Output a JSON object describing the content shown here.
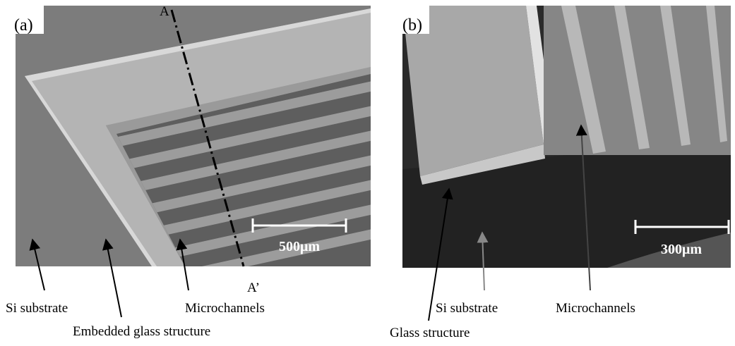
{
  "panels": [
    {
      "label": "(a)",
      "section_start": "A",
      "section_end": "A’",
      "scale": "500μm",
      "annotations": [
        "Si substrate",
        "Embedded glass structure",
        "Microchannels"
      ]
    },
    {
      "label": "(b)",
      "scale": "300μm",
      "annotations": [
        "Glass structure",
        "Si substrate",
        "Microchannels"
      ]
    }
  ]
}
